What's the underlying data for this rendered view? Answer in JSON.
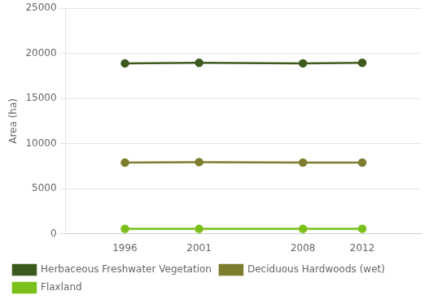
{
  "chart_data": {
    "type": "line",
    "x": [
      1996,
      2001,
      2008,
      2012
    ],
    "series": [
      {
        "name": "Herbaceous Freshwater Vegetation",
        "color": "#3d5a1e",
        "values": [
          18900,
          18950,
          18900,
          18950
        ]
      },
      {
        "name": "Deciduous Hardwoods (wet)",
        "color": "#7d7d30",
        "values": [
          7900,
          7950,
          7900,
          7900
        ]
      },
      {
        "name": "Flaxland",
        "color": "#7abf1a",
        "values": [
          550,
          540,
          555,
          560
        ]
      }
    ],
    "ylabel": "Area (ha)",
    "xlim": [
      1992,
      2016
    ],
    "xticks": [
      1996,
      2001,
      2008,
      2012
    ],
    "ylim": [
      0,
      25000
    ],
    "yticks": [
      0,
      5000,
      10000,
      15000,
      20000,
      25000
    ],
    "marker": "circle",
    "grid": "y",
    "legend": "bottom"
  }
}
